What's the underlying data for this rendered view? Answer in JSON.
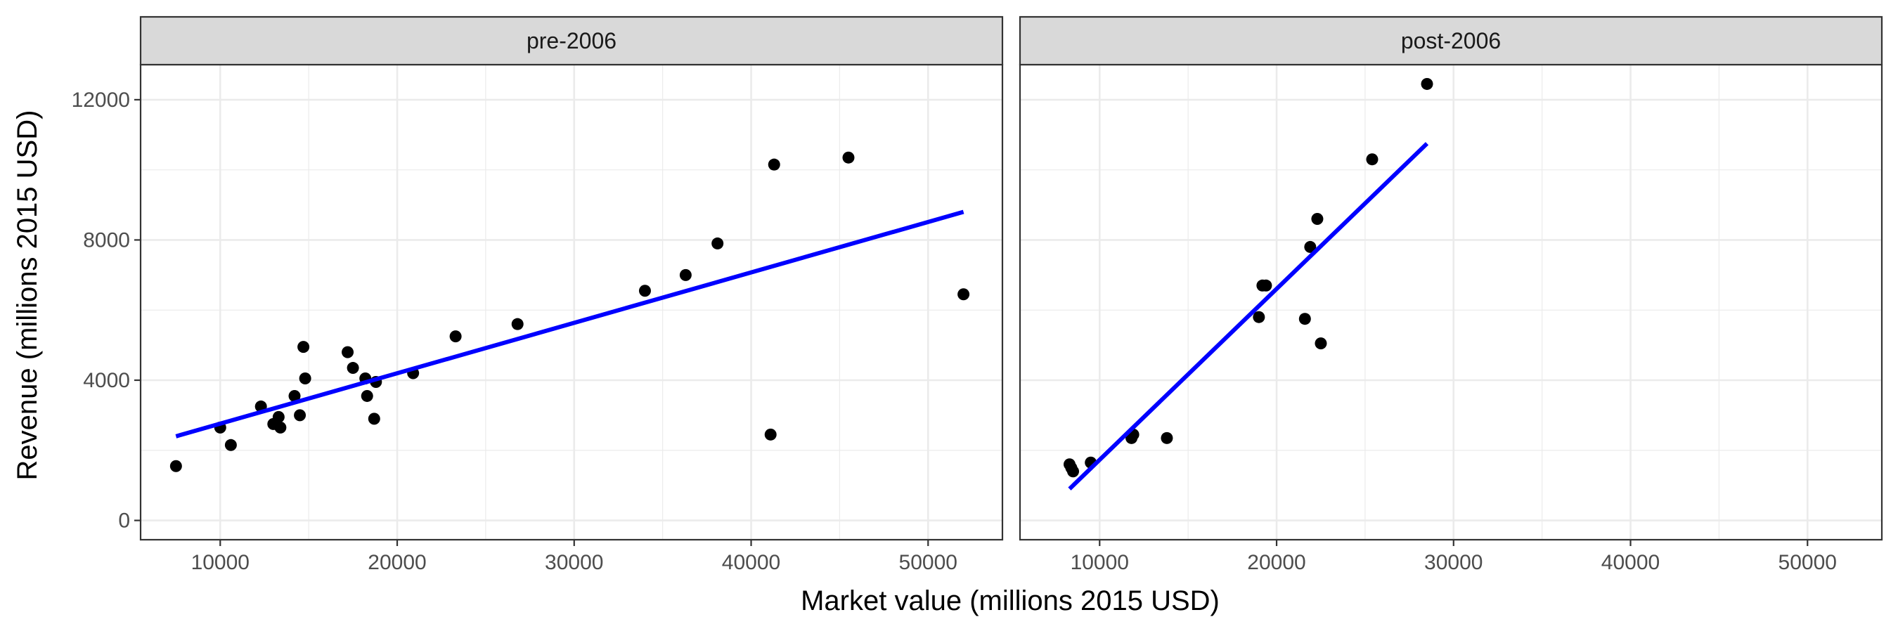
{
  "chart_data": {
    "type": "scatter",
    "xlabel": "Market value (millions 2015 USD)",
    "ylabel": "Revenue (millions 2015 USD)",
    "xlim": [
      5500,
      54200
    ],
    "ylim": [
      -550,
      13000
    ],
    "x_ticks": [
      10000,
      20000,
      30000,
      40000,
      50000
    ],
    "y_ticks": [
      0,
      4000,
      8000,
      12000
    ],
    "grid": true,
    "colors": {
      "points": "#000000",
      "fit_line": "#0000ff",
      "strip_bg": "#d9d9d9",
      "grid": "#ebebeb",
      "border": "#333333"
    },
    "panels": [
      {
        "strip": "pre-2006",
        "points": [
          {
            "x": 7500,
            "y": 1550
          },
          {
            "x": 10000,
            "y": 2650
          },
          {
            "x": 10600,
            "y": 2150
          },
          {
            "x": 12300,
            "y": 3250
          },
          {
            "x": 13000,
            "y": 2750
          },
          {
            "x": 13300,
            "y": 2950
          },
          {
            "x": 13400,
            "y": 2650
          },
          {
            "x": 14200,
            "y": 3550
          },
          {
            "x": 14500,
            "y": 3000
          },
          {
            "x": 14700,
            "y": 4950
          },
          {
            "x": 14800,
            "y": 4050
          },
          {
            "x": 17200,
            "y": 4800
          },
          {
            "x": 17500,
            "y": 4350
          },
          {
            "x": 18200,
            "y": 4050
          },
          {
            "x": 18300,
            "y": 3550
          },
          {
            "x": 18700,
            "y": 2900
          },
          {
            "x": 18800,
            "y": 3950
          },
          {
            "x": 20900,
            "y": 4200
          },
          {
            "x": 23300,
            "y": 5250
          },
          {
            "x": 26800,
            "y": 5600
          },
          {
            "x": 34000,
            "y": 6550
          },
          {
            "x": 36300,
            "y": 7000
          },
          {
            "x": 38100,
            "y": 7900
          },
          {
            "x": 41100,
            "y": 2450
          },
          {
            "x": 41300,
            "y": 10150
          },
          {
            "x": 45500,
            "y": 10350
          },
          {
            "x": 52000,
            "y": 6450
          }
        ],
        "fit": {
          "x": [
            7500,
            52000
          ],
          "y": [
            2400,
            8800
          ]
        }
      },
      {
        "strip": "post-2006",
        "points": [
          {
            "x": 8300,
            "y": 1600
          },
          {
            "x": 8400,
            "y": 1500
          },
          {
            "x": 8500,
            "y": 1400
          },
          {
            "x": 9500,
            "y": 1650
          },
          {
            "x": 11800,
            "y": 2350
          },
          {
            "x": 11900,
            "y": 2450
          },
          {
            "x": 13800,
            "y": 2350
          },
          {
            "x": 19000,
            "y": 5800
          },
          {
            "x": 19200,
            "y": 6700
          },
          {
            "x": 19400,
            "y": 6700
          },
          {
            "x": 21600,
            "y": 5750
          },
          {
            "x": 21900,
            "y": 7800
          },
          {
            "x": 22300,
            "y": 8600
          },
          {
            "x": 22500,
            "y": 5050
          },
          {
            "x": 25400,
            "y": 10300
          },
          {
            "x": 28500,
            "y": 12450
          }
        ],
        "fit": {
          "x": [
            8300,
            28500
          ],
          "y": [
            900,
            10750
          ]
        }
      }
    ]
  }
}
